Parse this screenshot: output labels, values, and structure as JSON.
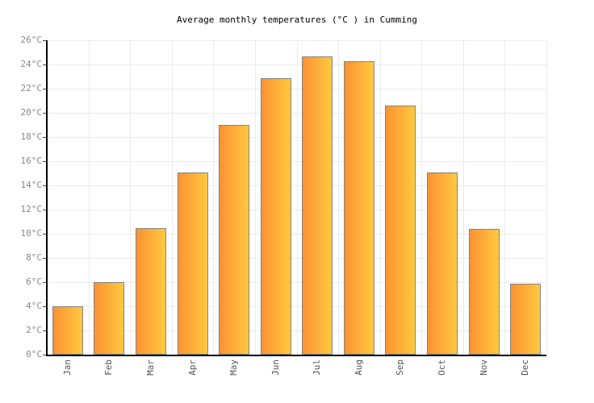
{
  "title": "Average monthly temperatures (°C ) in Cumming",
  "chart_data": {
    "type": "bar",
    "title": "Average monthly temperatures (°C ) in Cumming",
    "categories": [
      "Jan",
      "Feb",
      "Mar",
      "Apr",
      "May",
      "Jun",
      "Jul",
      "Aug",
      "Sep",
      "Oct",
      "Nov",
      "Dec"
    ],
    "values": [
      4.0,
      6.0,
      10.5,
      15.1,
      19.0,
      22.9,
      24.7,
      24.3,
      20.6,
      15.1,
      10.4,
      5.9
    ],
    "unit": "°C",
    "xlabel": "",
    "ylabel": "",
    "ylim": [
      0,
      26
    ],
    "ytick_step": 2,
    "y_tick_labels": [
      "0°C",
      "2°C",
      "4°C",
      "6°C",
      "8°C",
      "10°C",
      "12°C",
      "14°C",
      "16°C",
      "18°C",
      "20°C",
      "22°C",
      "24°C",
      "26°C"
    ],
    "grid": true,
    "legend": false
  },
  "colors": {
    "background": "#ffffff",
    "bar_gradient_left": "#FB9233",
    "bar_gradient_right": "#FFC93F",
    "bar_border": "#848484",
    "gridline": "#ececec",
    "axis": "#000000",
    "y_label_text": "#888888",
    "x_label_text": "#555555",
    "title_text": "#000000"
  }
}
